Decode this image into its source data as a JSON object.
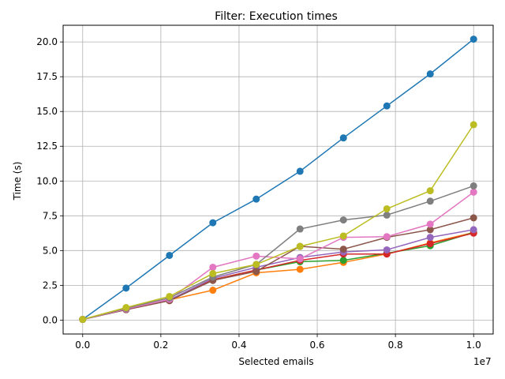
{
  "chart_data": {
    "type": "line",
    "title": "Filter: Execution times",
    "xlabel": "Selected emails",
    "ylabel": "Time (s)",
    "x_offset_label": "1e7",
    "xlim": [
      -0.05,
      1.05
    ],
    "ylim": [
      -1.0,
      21.2
    ],
    "grid": true,
    "x_ticks": [
      0.0,
      0.2,
      0.4,
      0.6,
      0.8,
      1.0
    ],
    "x_tick_labels": [
      "0.0",
      "0.2",
      "0.4",
      "0.6",
      "0.8",
      "1.0"
    ],
    "y_ticks": [
      0.0,
      2.5,
      5.0,
      7.5,
      10.0,
      12.5,
      15.0,
      17.5,
      20.0
    ],
    "y_tick_labels": [
      "0.0",
      "2.5",
      "5.0",
      "7.5",
      "10.0",
      "12.5",
      "15.0",
      "17.5",
      "20.0"
    ],
    "x": [
      0.0,
      0.111,
      0.222,
      0.333,
      0.444,
      0.556,
      0.667,
      0.778,
      0.889,
      1.0
    ],
    "series": [
      {
        "color": "#1f77b4",
        "values": [
          0.05,
          2.3,
          4.65,
          7.0,
          8.7,
          10.7,
          13.1,
          15.4,
          17.7,
          20.2
        ]
      },
      {
        "color": "#ff7f0e",
        "values": [
          0.05,
          0.8,
          1.45,
          2.15,
          3.4,
          3.65,
          4.15,
          4.75,
          5.55,
          6.3
        ]
      },
      {
        "color": "#2ca02c",
        "values": [
          0.05,
          0.75,
          1.4,
          2.9,
          3.6,
          4.2,
          4.3,
          4.8,
          5.35,
          6.3
        ]
      },
      {
        "color": "#d62728",
        "values": [
          0.05,
          0.75,
          1.4,
          2.9,
          3.6,
          4.3,
          4.75,
          4.75,
          5.5,
          6.25
        ]
      },
      {
        "color": "#9467bd",
        "values": [
          0.05,
          0.75,
          1.45,
          3.0,
          3.8,
          4.5,
          4.9,
          5.05,
          5.95,
          6.5
        ]
      },
      {
        "color": "#8c564b",
        "values": [
          0.05,
          0.75,
          1.4,
          2.85,
          3.5,
          5.3,
          5.1,
          5.95,
          6.5,
          7.35
        ]
      },
      {
        "color": "#e377c2",
        "values": [
          0.05,
          0.8,
          1.5,
          3.8,
          4.6,
          4.4,
          5.95,
          6.0,
          6.9,
          9.2
        ]
      },
      {
        "color": "#7f7f7f",
        "values": [
          0.05,
          0.85,
          1.6,
          3.1,
          4.0,
          6.55,
          7.2,
          7.55,
          8.55,
          9.65
        ]
      },
      {
        "color": "#bcbd22",
        "values": [
          0.05,
          0.9,
          1.7,
          3.35,
          4.0,
          5.3,
          6.05,
          8.0,
          9.3,
          14.05
        ]
      }
    ]
  }
}
